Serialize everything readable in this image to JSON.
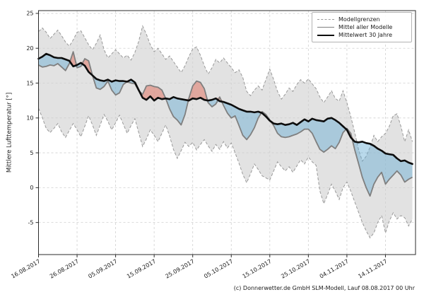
{
  "chart_data": {
    "type": "line",
    "title": "",
    "ylabel": "Mittlere Lufttemperatur [°]",
    "xlabel": "",
    "ylim": [
      -9.6,
      25.4
    ],
    "xlim_days": [
      0,
      97.8
    ],
    "y_ticks": [
      25,
      20,
      15,
      10,
      5,
      0,
      -5
    ],
    "x_tick_days": [
      0,
      10,
      20,
      30,
      40,
      50,
      60,
      70,
      80,
      90
    ],
    "x_tick_labels": [
      "16.08.2017",
      "26.08.2017",
      "05.09.2017",
      "15.09.2017",
      "25.09.2017",
      "05.10.2017",
      "15.10.2017",
      "25.10.2017",
      "04.11.2017",
      "14.11.2017"
    ],
    "grid": true,
    "legend_position": "upper right",
    "fill_semantics": {
      "model_mean_above_30yr_mean": "red",
      "model_mean_below_30yr_mean": "blue"
    },
    "series": [
      {
        "name": "Modellgrenzen",
        "style": "gray dashed band",
        "upper": [
          22.4,
          22.9,
          22.3,
          21.4,
          22.0,
          22.6,
          21.8,
          20.9,
          20.3,
          21.2,
          22.3,
          22.5,
          21.5,
          20.5,
          19.8,
          20.7,
          21.9,
          19.8,
          18.6,
          19.2,
          19.8,
          19.2,
          18.6,
          19.0,
          18.3,
          19.4,
          21.0,
          23.2,
          22.0,
          20.5,
          19.5,
          20.0,
          19.2,
          18.4,
          18.9,
          18.1,
          17.3,
          16.5,
          17.5,
          18.8,
          19.9,
          20.2,
          19.0,
          17.5,
          16.3,
          17.2,
          18.4,
          17.9,
          18.6,
          17.9,
          17.2,
          16.5,
          16.9,
          15.8,
          13.8,
          13.2,
          14.0,
          14.6,
          14.0,
          15.5,
          17.0,
          15.5,
          13.8,
          12.7,
          13.4,
          14.3,
          13.8,
          14.8,
          15.5,
          15.0,
          15.6,
          14.9,
          14.2,
          13.0,
          12.2,
          13.0,
          13.9,
          12.8,
          12.4,
          13.9,
          12.2,
          10.2,
          8.0,
          5.5,
          3.8,
          4.5,
          5.8,
          7.5,
          6.6,
          7.3,
          7.8,
          8.8,
          10.3,
          10.6,
          8.8,
          6.6,
          8.3,
          6.6
        ],
        "lower": [
          11.4,
          10.0,
          8.5,
          7.9,
          8.5,
          9.2,
          8.0,
          7.2,
          8.2,
          9.2,
          8.3,
          7.3,
          8.8,
          10.3,
          9.0,
          7.5,
          9.0,
          10.5,
          9.5,
          8.3,
          9.3,
          10.4,
          9.1,
          7.8,
          8.9,
          9.9,
          7.9,
          5.9,
          7.0,
          8.3,
          7.5,
          6.6,
          7.8,
          9.0,
          7.4,
          5.5,
          4.2,
          5.3,
          6.5,
          5.9,
          6.5,
          5.4,
          6.2,
          6.9,
          6.0,
          5.2,
          6.2,
          5.5,
          6.6,
          5.7,
          6.4,
          5.0,
          3.5,
          1.9,
          0.7,
          2.0,
          3.4,
          2.6,
          1.7,
          1.4,
          1.1,
          2.4,
          3.7,
          3.0,
          2.4,
          3.0,
          2.2,
          3.1,
          4.0,
          3.4,
          4.4,
          3.7,
          3.2,
          -0.5,
          -2.3,
          -1.0,
          0.5,
          -0.5,
          -1.7,
          0.0,
          0.8,
          -0.5,
          -2.0,
          -3.5,
          -5.0,
          -6.2,
          -7.2,
          -6.5,
          -5.0,
          -4.0,
          -6.5,
          -4.8,
          -3.6,
          -4.5,
          -4.0,
          -4.3,
          -5.5,
          -4.5
        ]
      },
      {
        "name": "Mittel aller Modelle",
        "style": "gray line",
        "values": [
          17.6,
          17.3,
          17.4,
          17.6,
          17.5,
          17.8,
          17.3,
          16.8,
          17.8,
          19.5,
          17.2,
          17.4,
          18.5,
          18.2,
          16.1,
          14.3,
          14.1,
          14.5,
          15.3,
          14.0,
          13.3,
          13.6,
          14.8,
          15.2,
          15.0,
          14.9,
          13.9,
          13.4,
          14.6,
          14.7,
          14.5,
          14.4,
          14.0,
          12.8,
          11.3,
          10.2,
          9.7,
          9.0,
          10.5,
          12.8,
          14.6,
          15.3,
          15.1,
          14.2,
          12.2,
          11.6,
          12.0,
          13.0,
          11.8,
          10.7,
          10.0,
          10.3,
          8.9,
          7.5,
          6.9,
          7.6,
          8.6,
          10.0,
          10.9,
          10.5,
          9.7,
          8.9,
          7.8,
          7.3,
          7.2,
          7.3,
          7.5,
          7.7,
          8.0,
          8.4,
          8.4,
          7.8,
          6.6,
          5.5,
          5.1,
          5.5,
          6.0,
          5.6,
          6.5,
          7.9,
          8.5,
          7.8,
          5.5,
          3.5,
          1.5,
          0.0,
          -1.2,
          0.5,
          1.5,
          2.2,
          0.5,
          1.2,
          1.8,
          2.4,
          1.8,
          0.8,
          1.2,
          1.5
        ]
      },
      {
        "name": "Mittelwert 30 Jahre",
        "style": "black bold line",
        "values": [
          18.5,
          18.8,
          19.2,
          19.0,
          18.7,
          18.6,
          18.6,
          18.4,
          18.2,
          17.4,
          17.6,
          17.9,
          17.5,
          16.6,
          16.1,
          15.6,
          15.4,
          15.3,
          15.5,
          15.2,
          15.4,
          15.3,
          15.3,
          15.2,
          15.5,
          15.1,
          14.0,
          12.9,
          12.6,
          13.1,
          12.5,
          12.9,
          12.7,
          12.8,
          12.7,
          13.0,
          12.8,
          12.7,
          12.6,
          12.5,
          12.8,
          12.7,
          12.9,
          12.6,
          12.5,
          12.6,
          12.8,
          12.4,
          12.3,
          12.1,
          11.9,
          11.6,
          11.3,
          11.1,
          10.9,
          10.9,
          10.8,
          10.9,
          10.7,
          10.2,
          9.6,
          9.2,
          9.1,
          9.2,
          9.0,
          9.1,
          9.3,
          9.0,
          9.4,
          9.8,
          9.5,
          9.9,
          9.7,
          9.6,
          9.5,
          9.9,
          10.0,
          9.7,
          9.3,
          8.8,
          8.3,
          7.2,
          6.6,
          6.5,
          6.6,
          6.4,
          6.3,
          6.0,
          5.6,
          5.3,
          4.9,
          4.8,
          4.7,
          4.2,
          3.8,
          3.9,
          3.6,
          3.4
        ]
      }
    ]
  },
  "legend": {
    "items": [
      {
        "label": "Modellgrenzen"
      },
      {
        "label": "Mittel aller Modelle"
      },
      {
        "label": "Mittelwert 30 Jahre"
      }
    ]
  },
  "footer": {
    "credit": "(c) Donnerwetter.de GmbH SLM-Modell, Lauf 08.08.2017 00 Uhr"
  },
  "colors": {
    "band_fill": "#e2e2e2",
    "band_edge": "#999999",
    "grid": "#d0d0d0",
    "model_mean_line": "#7f7f7f",
    "mean30_line": "#0d0d0d",
    "above_fill": "#e15f4b",
    "below_fill": "#64aad2",
    "fill_alpha": 0.45,
    "frame": "#2b2b2b",
    "text": "#1a1a1a",
    "legend_border": "#b3b3b3"
  }
}
